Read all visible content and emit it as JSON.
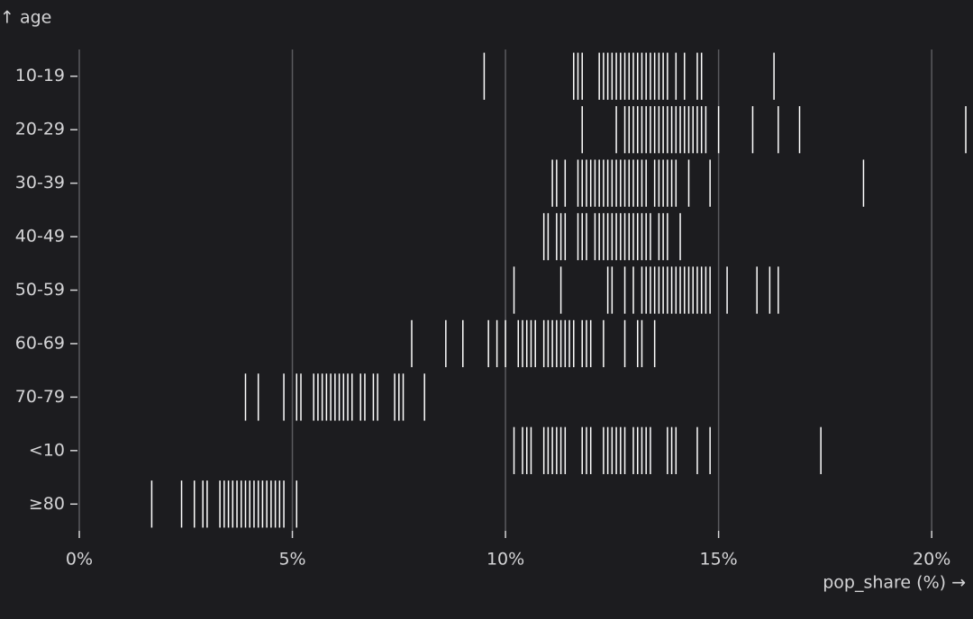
{
  "chart_data": {
    "type": "tick",
    "y_label": "↑ age",
    "x_label": "pop_share (%) →",
    "categories": [
      "10-19",
      "20-29",
      "30-39",
      "40-49",
      "50-59",
      "60-69",
      "70-79",
      "<10",
      "≥80"
    ],
    "values": [
      [
        9.5,
        11.6,
        11.7,
        11.8,
        12.2,
        12.3,
        12.4,
        12.5,
        12.6,
        12.7,
        12.8,
        12.9,
        13.0,
        13.1,
        13.2,
        13.3,
        13.4,
        13.5,
        13.6,
        13.7,
        13.8,
        14.0,
        14.2,
        14.5,
        14.6,
        16.3
      ],
      [
        11.8,
        12.6,
        12.8,
        12.9,
        13.0,
        13.1,
        13.2,
        13.3,
        13.4,
        13.5,
        13.6,
        13.7,
        13.8,
        13.9,
        14.0,
        14.1,
        14.2,
        14.3,
        14.4,
        14.5,
        14.6,
        14.7,
        15.0,
        15.8,
        16.4,
        16.9,
        20.8
      ],
      [
        11.1,
        11.2,
        11.4,
        11.7,
        11.8,
        11.9,
        12.0,
        12.1,
        12.2,
        12.3,
        12.4,
        12.5,
        12.6,
        12.7,
        12.8,
        12.9,
        13.0,
        13.1,
        13.2,
        13.3,
        13.5,
        13.6,
        13.7,
        13.8,
        13.9,
        14.0,
        14.3,
        14.8,
        18.4
      ],
      [
        10.9,
        11.0,
        11.2,
        11.3,
        11.4,
        11.7,
        11.8,
        11.9,
        12.1,
        12.2,
        12.3,
        12.4,
        12.5,
        12.6,
        12.7,
        12.8,
        12.9,
        13.0,
        13.1,
        13.2,
        13.3,
        13.4,
        13.6,
        13.7,
        13.8,
        14.1
      ],
      [
        10.2,
        11.3,
        12.4,
        12.5,
        12.8,
        13.0,
        13.2,
        13.3,
        13.4,
        13.5,
        13.6,
        13.7,
        13.8,
        13.9,
        14.0,
        14.1,
        14.2,
        14.3,
        14.4,
        14.5,
        14.6,
        14.7,
        14.8,
        15.2,
        15.9,
        16.2,
        16.4
      ],
      [
        7.8,
        8.6,
        9.0,
        9.6,
        9.8,
        10.0,
        10.3,
        10.4,
        10.5,
        10.6,
        10.7,
        10.9,
        11.0,
        11.1,
        11.2,
        11.3,
        11.4,
        11.5,
        11.6,
        11.8,
        11.9,
        12.0,
        12.3,
        12.8,
        13.1,
        13.2,
        13.5
      ],
      [
        3.9,
        4.2,
        4.8,
        5.1,
        5.2,
        5.5,
        5.6,
        5.7,
        5.8,
        5.9,
        6.0,
        6.1,
        6.2,
        6.3,
        6.4,
        6.6,
        6.7,
        6.9,
        7.0,
        7.4,
        7.5,
        7.6,
        8.1
      ],
      [
        10.2,
        10.4,
        10.5,
        10.6,
        10.9,
        11.0,
        11.1,
        11.2,
        11.3,
        11.4,
        11.8,
        11.9,
        12.0,
        12.3,
        12.4,
        12.5,
        12.6,
        12.7,
        12.8,
        13.0,
        13.1,
        13.2,
        13.3,
        13.4,
        13.8,
        13.9,
        14.0,
        14.5,
        14.8,
        17.4
      ],
      [
        1.7,
        2.4,
        2.7,
        2.9,
        3.0,
        3.3,
        3.4,
        3.5,
        3.6,
        3.7,
        3.8,
        3.9,
        4.0,
        4.1,
        4.2,
        4.3,
        4.4,
        4.5,
        4.6,
        4.7,
        4.8,
        5.1
      ]
    ],
    "color": "#ffffff",
    "xlim": [
      0,
      20.8
    ],
    "xticks": [
      {
        "value": 0,
        "label": "0%"
      },
      {
        "value": 5,
        "label": "5%"
      },
      {
        "value": 10,
        "label": "10%"
      },
      {
        "value": 15,
        "label": "15%"
      },
      {
        "value": 20,
        "label": "20%"
      }
    ],
    "grid": true
  }
}
